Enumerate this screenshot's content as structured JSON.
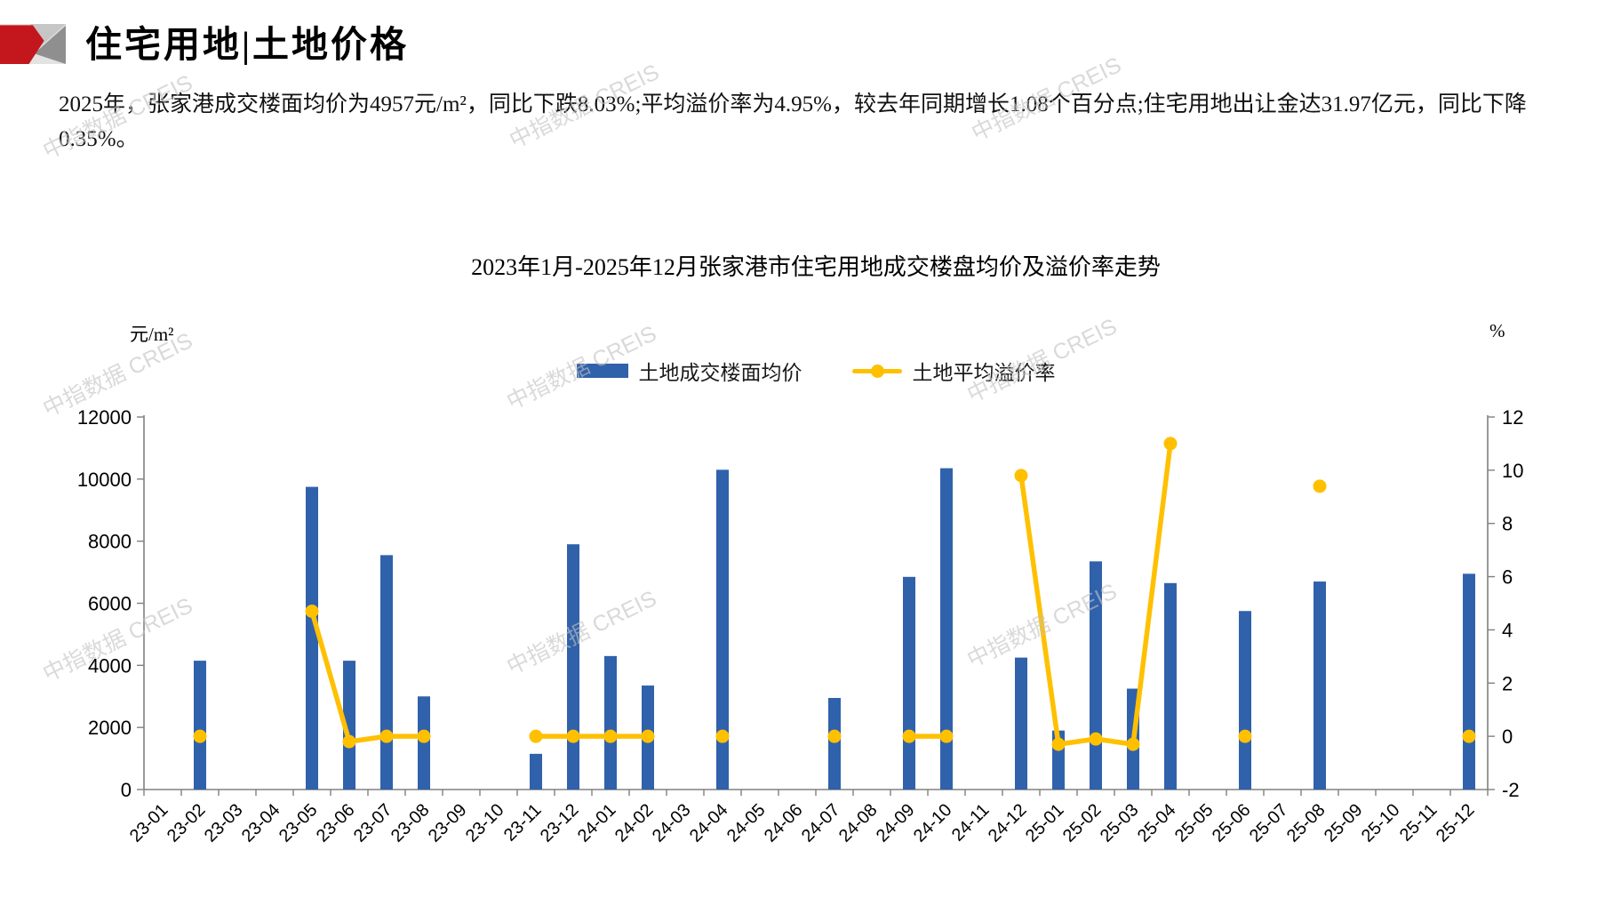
{
  "header": {
    "title": "住宅用地|土地价格"
  },
  "intro": "2025年，张家港成交楼面均价为4957元/m²，同比下跌8.03%;平均溢价率为4.95%，较去年同期增长1.08个百分点;住宅用地出让金达31.97亿元，同比下降0.35%。",
  "watermark": "中指数据 CREIS",
  "chart": {
    "title": "2023年1月-2025年12月张家港市住宅用地成交楼盘均价及溢价率走势",
    "left_unit": "元/m²",
    "right_unit": "%",
    "legend_bar_label": "土地成交楼面均价",
    "legend_line_label": "土地平均溢价率",
    "bar_color": "#3061ab",
    "line_color": "#ffc000",
    "axis_color": "#808080"
  },
  "chart_data": {
    "type": "bar",
    "title": "2023年1月-2025年12月张家港市住宅用地成交楼盘均价及溢价率走势",
    "categories": [
      "23-01",
      "23-02",
      "23-03",
      "23-04",
      "23-05",
      "23-06",
      "23-07",
      "23-08",
      "23-09",
      "23-10",
      "23-11",
      "23-12",
      "24-01",
      "24-02",
      "24-03",
      "24-04",
      "24-05",
      "24-06",
      "24-07",
      "24-08",
      "24-09",
      "24-10",
      "24-11",
      "24-12",
      "25-01",
      "25-02",
      "25-03",
      "25-04",
      "25-05",
      "25-06",
      "25-07",
      "25-08",
      "25-09",
      "25-10",
      "25-11",
      "25-12"
    ],
    "series": [
      {
        "name": "土地成交楼面均价",
        "type": "bar",
        "axis": "left",
        "color": "#3061ab",
        "values": [
          null,
          4150,
          null,
          null,
          9750,
          4150,
          7550,
          3000,
          null,
          null,
          1150,
          7900,
          4300,
          3350,
          null,
          10300,
          null,
          null,
          2950,
          null,
          6850,
          10350,
          null,
          4250,
          1900,
          7350,
          3250,
          6650,
          null,
          5750,
          null,
          6700,
          null,
          null,
          null,
          6950
        ]
      },
      {
        "name": "土地平均溢价率",
        "type": "line",
        "axis": "right",
        "color": "#ffc000",
        "values": [
          null,
          0,
          null,
          null,
          4.7,
          -0.2,
          0,
          0,
          null,
          null,
          0,
          0,
          0,
          0,
          null,
          0,
          null,
          null,
          0,
          null,
          0,
          0,
          null,
          9.8,
          -0.3,
          -0.1,
          -0.3,
          11.0,
          null,
          0,
          null,
          9.4,
          null,
          null,
          null,
          0
        ]
      }
    ],
    "left_axis": {
      "label": "元/m²",
      "min": 0,
      "max": 12000,
      "ticks": [
        0,
        2000,
        4000,
        6000,
        8000,
        10000,
        12000
      ]
    },
    "right_axis": {
      "label": "%",
      "min": -2,
      "max": 12,
      "ticks": [
        -2,
        0,
        2,
        4,
        6,
        8,
        10,
        12
      ]
    },
    "grid": false,
    "legend_position": "top-center"
  }
}
